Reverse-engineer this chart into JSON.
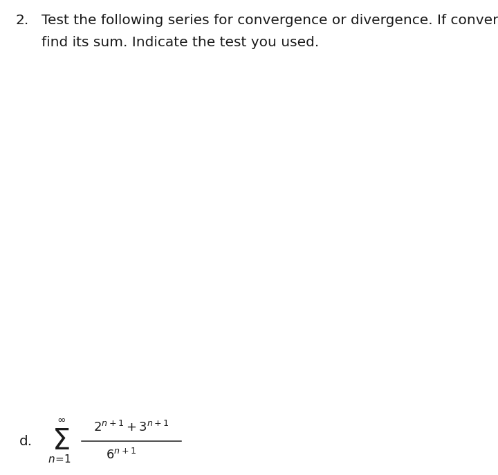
{
  "background_color": "#ffffff",
  "text_color": "#1a1a1a",
  "header_number": "2.",
  "header_line1": "Test the following series for convergence or divergence. If convergent,",
  "header_line2": "find its sum. Indicate the test you used.",
  "header_fontsize": 14.5,
  "header_font": "Arial",
  "part_label": "d.",
  "part_fontsize": 14.5,
  "sigma_fontsize": 30,
  "sub_sup_fontsize": 11,
  "formula_fontsize": 13,
  "frac_line_color": "#1a1a1a"
}
